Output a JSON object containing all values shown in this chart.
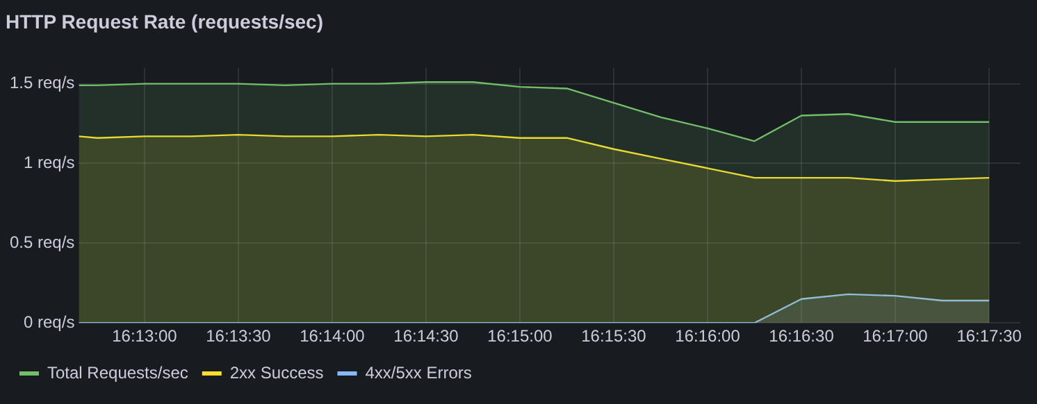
{
  "chart_data": {
    "type": "area",
    "title": "HTTP Request Rate (requests/sec)",
    "x": [
      16.210833,
      16.2125,
      16.21667,
      16.22083,
      16.225,
      16.22917,
      16.23333,
      16.2375,
      16.24167,
      16.24583,
      16.25,
      16.25417,
      16.25833,
      16.2625,
      16.26667,
      16.27083,
      16.275,
      16.27917,
      16.28333,
      16.2875,
      16.29167
    ],
    "series": [
      {
        "name": "Total Requests/sec",
        "color": "#73bf69",
        "values": [
          1.49,
          1.49,
          1.5,
          1.5,
          1.5,
          1.49,
          1.5,
          1.5,
          1.51,
          1.51,
          1.48,
          1.47,
          1.38,
          1.29,
          1.22,
          1.14,
          1.3,
          1.31,
          1.26,
          1.26,
          1.26
        ]
      },
      {
        "name": "2xx Success",
        "color": "#fade2a",
        "values": [
          1.17,
          1.16,
          1.17,
          1.17,
          1.18,
          1.17,
          1.17,
          1.18,
          1.17,
          1.18,
          1.16,
          1.16,
          1.09,
          1.03,
          0.97,
          0.91,
          0.91,
          0.91,
          0.89,
          0.9,
          0.91
        ]
      },
      {
        "name": "4xx/5xx Errors",
        "color": "#8ab8ff",
        "values": [
          0,
          0,
          0,
          0,
          0,
          0,
          0,
          0,
          0,
          0,
          0,
          0,
          0,
          0,
          0,
          0,
          0.15,
          0.18,
          0.17,
          0.14,
          0.14
        ]
      }
    ],
    "xlim": [
      16.210833,
      16.29444
    ],
    "xticks": [
      {
        "value": 16.21667,
        "label": "16:13:00"
      },
      {
        "value": 16.225,
        "label": "16:13:30"
      },
      {
        "value": 16.23333,
        "label": "16:14:00"
      },
      {
        "value": 16.24167,
        "label": "16:14:30"
      },
      {
        "value": 16.25,
        "label": "16:15:00"
      },
      {
        "value": 16.25833,
        "label": "16:15:30"
      },
      {
        "value": 16.26667,
        "label": "16:16:00"
      },
      {
        "value": 16.275,
        "label": "16:16:30"
      },
      {
        "value": 16.28333,
        "label": "16:17:00"
      },
      {
        "value": 16.29167,
        "label": "16:17:30"
      }
    ],
    "ylim": [
      0,
      1.6
    ],
    "yticks": [
      {
        "value": 0,
        "label": "0 req/s"
      },
      {
        "value": 0.5,
        "label": "0.5 req/s"
      },
      {
        "value": 1,
        "label": "1 req/s"
      },
      {
        "value": 1.5,
        "label": "1.5 req/s"
      }
    ],
    "grid": true,
    "legend": "bottom left",
    "marker": "none",
    "line_style": "solid"
  }
}
